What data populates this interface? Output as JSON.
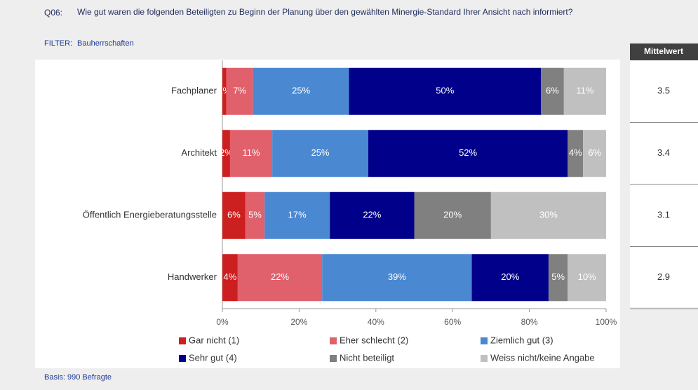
{
  "question_id": "Q06:",
  "question": "Wie gut waren die folgenden Beteiligten zu Beginn der Planung über den gewählten Minergie-Standard Ihrer Ansicht nach informiert?",
  "filter_label": "FILTER:",
  "filter": "Bauherrschaften",
  "footer": "Basis: 990 Befragte",
  "chart_data": {
    "type": "stacked_barh",
    "categories": [
      "Fachplaner",
      "Architekt",
      "Öffentlich Energieberatungsstelle",
      "Handwerker"
    ],
    "series": [
      {
        "name": "Gar nicht (1)",
        "color": "#cc1f1f",
        "values": [
          1,
          2,
          6,
          4
        ],
        "value_labels": [
          "1%",
          "2%",
          "6%",
          "4%"
        ]
      },
      {
        "name": "Eher schlecht (2)",
        "color": "#e0606c",
        "values": [
          7,
          11,
          5,
          22
        ],
        "value_labels": [
          "7%",
          "11%",
          "5%",
          "22%"
        ]
      },
      {
        "name": "Ziemlich gut (3)",
        "color": "#4a88d2",
        "values": [
          25,
          25,
          17,
          39
        ],
        "value_labels": [
          "25%",
          "25%",
          "17%",
          "39%"
        ]
      },
      {
        "name": "Sehr gut (4)",
        "color": "#00008b",
        "values": [
          50,
          52,
          22,
          20
        ],
        "value_labels": [
          "50%",
          "52%",
          "22%",
          "20%"
        ]
      },
      {
        "name": "Nicht beteiligt",
        "color": "#808080",
        "values": [
          6,
          4,
          20,
          5
        ],
        "value_labels": [
          "6%",
          "4%",
          "20%",
          "5%"
        ]
      },
      {
        "name": "Weiss nicht/keine Angabe",
        "color": "#c0c0c0",
        "values": [
          11,
          6,
          30,
          10
        ],
        "value_labels": [
          "11%",
          "6%",
          "30%",
          "10%"
        ]
      }
    ],
    "xlim": [
      0,
      100
    ],
    "xticks": [
      {
        "value": 0,
        "label": "0%"
      },
      {
        "value": 20,
        "label": "20%"
      },
      {
        "value": 40,
        "label": "40%"
      },
      {
        "value": 60,
        "label": "60%"
      },
      {
        "value": 80,
        "label": "80%"
      },
      {
        "value": 100,
        "label": "100%"
      }
    ],
    "mean_header": "Mittelwert",
    "means": [
      3.5,
      3.4,
      3.1,
      2.9
    ]
  }
}
